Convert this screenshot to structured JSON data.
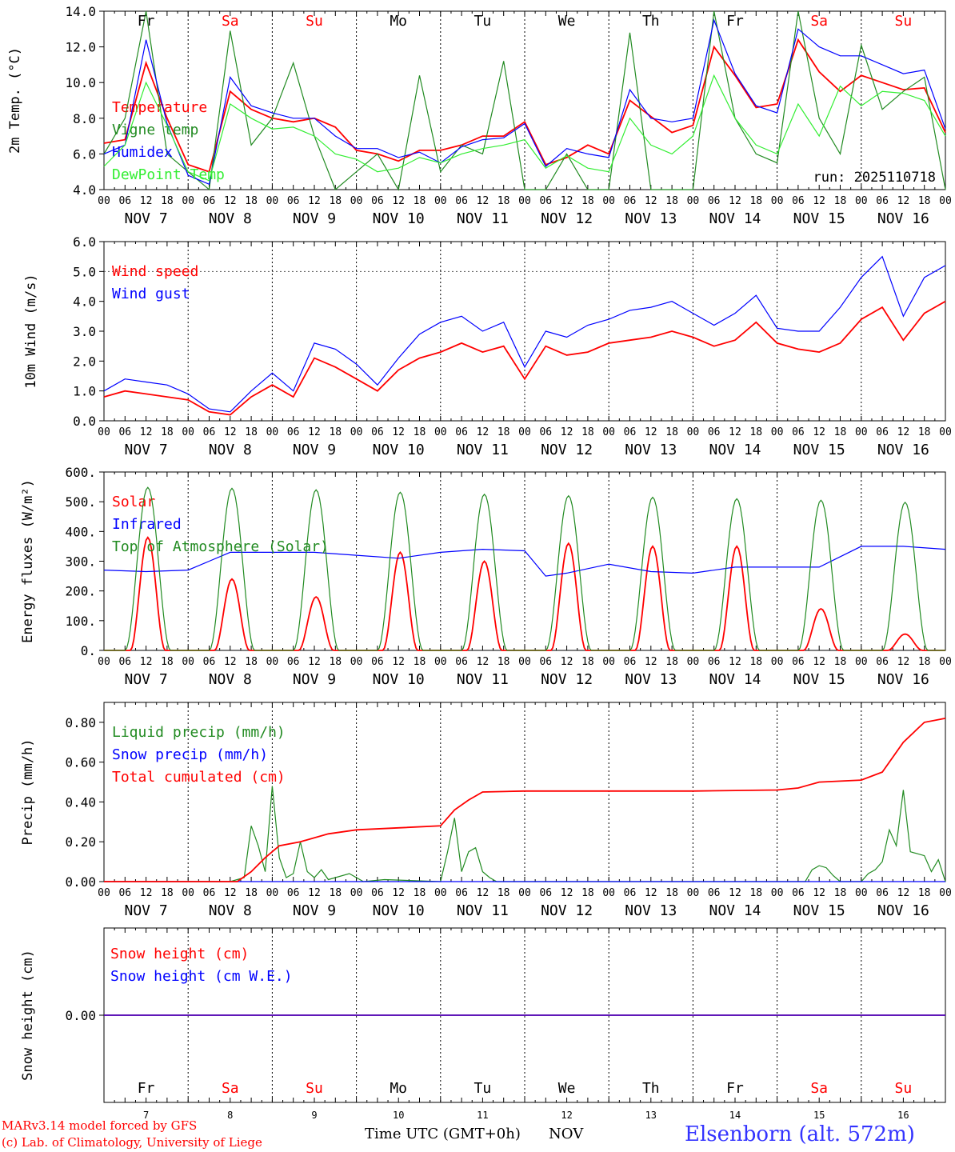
{
  "colors": {
    "red": "#ff0000",
    "green": "#228b22",
    "blue": "#0000ff",
    "lightgreen": "#33ee33",
    "weekday": "#000000",
    "weekend": "#ff0000",
    "station": "#3333ff"
  },
  "hour_ticks": [
    "00",
    "06",
    "12",
    "18"
  ],
  "days": [
    {
      "abbr": "Fr",
      "date": "NOV  7",
      "num": "7",
      "weekend": false
    },
    {
      "abbr": "Sa",
      "date": "NOV  8",
      "num": "8",
      "weekend": true
    },
    {
      "abbr": "Su",
      "date": "NOV  9",
      "num": "9",
      "weekend": true
    },
    {
      "abbr": "Mo",
      "date": "NOV 10",
      "num": "10",
      "weekend": false
    },
    {
      "abbr": "Tu",
      "date": "NOV 11",
      "num": "11",
      "weekend": false
    },
    {
      "abbr": "We",
      "date": "NOV 12",
      "num": "12",
      "weekend": false
    },
    {
      "abbr": "Th",
      "date": "NOV 13",
      "num": "13",
      "weekend": false
    },
    {
      "abbr": "Fr",
      "date": "NOV 14",
      "num": "14",
      "weekend": false
    },
    {
      "abbr": "Sa",
      "date": "NOV 15",
      "num": "15",
      "weekend": true
    },
    {
      "abbr": "Su",
      "date": "NOV 16",
      "num": "16",
      "weekend": true
    }
  ],
  "chart_data": [
    {
      "id": "temp",
      "type": "line",
      "ylabel": "2m Temp. (°C)",
      "ylim": [
        4,
        14
      ],
      "yticks": [
        4,
        6,
        8,
        10,
        12,
        14
      ],
      "ytick_labels": [
        "4.0",
        "6.0",
        "8.0",
        "10.0",
        "12.0",
        "14.0"
      ],
      "xlabel_hours": "0-240 h from NOV 7 00 UTC",
      "x": [
        0,
        6,
        12,
        18,
        24,
        30,
        36,
        42,
        48,
        54,
        60,
        66,
        72,
        78,
        84,
        90,
        96,
        102,
        108,
        114,
        120,
        126,
        132,
        138,
        144,
        150,
        156,
        162,
        168,
        174,
        180,
        186,
        192,
        198,
        204,
        210,
        216,
        222,
        228,
        234,
        240
      ],
      "annotation": "run: 2025110718",
      "series": [
        {
          "name": "Temperature",
          "color": "red",
          "values": [
            6.6,
            6.8,
            11.1,
            8.0,
            5.4,
            5.0,
            9.5,
            8.5,
            8.0,
            7.8,
            8.0,
            7.5,
            6.2,
            6.0,
            5.6,
            6.2,
            6.2,
            6.5,
            7.0,
            7.0,
            7.8,
            5.4,
            5.8,
            6.5,
            6.0,
            9.0,
            8.1,
            7.2,
            7.6,
            12.0,
            10.4,
            8.6,
            8.8,
            12.4,
            10.6,
            9.5,
            10.4,
            10.0,
            9.6,
            9.7,
            7.2
          ]
        },
        {
          "name": "Vigne temp",
          "color": "green",
          "values": [
            6.0,
            8.0,
            14.5,
            6.0,
            5.0,
            4.0,
            12.9,
            6.5,
            8.0,
            11.1,
            7.0,
            4.0,
            5.0,
            6.0,
            4.0,
            10.4,
            5.0,
            6.5,
            6.0,
            11.2,
            4.0,
            4.0,
            6.0,
            4.0,
            4.0,
            12.8,
            4.0,
            4.0,
            4.0,
            14.0,
            8.0,
            6.0,
            5.5,
            14.0,
            8.0,
            6.0,
            12.1,
            8.5,
            9.5,
            10.3,
            4.0
          ]
        },
        {
          "name": "Humidex",
          "color": "blue",
          "values": [
            6.0,
            6.5,
            12.4,
            7.7,
            4.8,
            4.3,
            10.3,
            8.7,
            8.3,
            8.0,
            8.0,
            7.0,
            6.3,
            6.3,
            5.8,
            6.1,
            5.5,
            6.4,
            6.8,
            6.9,
            7.7,
            5.3,
            6.3,
            6.0,
            5.8,
            9.6,
            8.0,
            7.8,
            8.0,
            13.5,
            10.5,
            8.7,
            8.3,
            13.0,
            12.0,
            11.5,
            11.5,
            11.0,
            10.5,
            10.7,
            7.4
          ]
        },
        {
          "name": "DewPoint Temp",
          "color": "lightgreen",
          "values": [
            5.3,
            6.5,
            10.0,
            7.6,
            5.0,
            4.5,
            8.8,
            8.0,
            7.4,
            7.5,
            7.0,
            6.0,
            5.7,
            5.0,
            5.2,
            5.8,
            5.5,
            6.0,
            6.3,
            6.5,
            6.8,
            5.2,
            5.9,
            5.2,
            5.0,
            8.0,
            6.5,
            6.0,
            7.0,
            10.4,
            8.0,
            6.5,
            6.0,
            8.8,
            7.0,
            9.8,
            8.7,
            9.5,
            9.4,
            9.0,
            7.0
          ]
        }
      ]
    },
    {
      "id": "wind",
      "type": "line",
      "ylabel": "10m Wind (m/s)",
      "ylim": [
        0,
        6
      ],
      "yticks": [
        0,
        1,
        2,
        3,
        4,
        5,
        6
      ],
      "ytick_labels": [
        "0.0",
        "1.0",
        "2.0",
        "3.0",
        "4.0",
        "5.0",
        "6.0"
      ],
      "reference_line": 5,
      "x": [
        0,
        6,
        12,
        18,
        24,
        30,
        36,
        42,
        48,
        54,
        60,
        66,
        72,
        78,
        84,
        90,
        96,
        102,
        108,
        114,
        120,
        126,
        132,
        138,
        144,
        150,
        156,
        162,
        168,
        174,
        180,
        186,
        192,
        198,
        204,
        210,
        216,
        222,
        228,
        234,
        240
      ],
      "series": [
        {
          "name": "Wind speed",
          "color": "red",
          "values": [
            0.8,
            1.0,
            0.9,
            0.8,
            0.7,
            0.3,
            0.2,
            0.8,
            1.2,
            0.8,
            2.1,
            1.8,
            1.4,
            1.0,
            1.7,
            2.1,
            2.3,
            2.6,
            2.3,
            2.5,
            1.4,
            2.5,
            2.2,
            2.3,
            2.6,
            2.7,
            2.8,
            3.0,
            2.8,
            2.5,
            2.7,
            3.3,
            2.6,
            2.4,
            2.3,
            2.6,
            3.4,
            3.8,
            2.7,
            3.6,
            4.0
          ]
        },
        {
          "name": "Wind gust",
          "color": "blue",
          "values": [
            1.0,
            1.4,
            1.3,
            1.2,
            0.9,
            0.4,
            0.3,
            1.0,
            1.6,
            1.0,
            2.6,
            2.4,
            1.9,
            1.2,
            2.1,
            2.9,
            3.3,
            3.5,
            3.0,
            3.3,
            1.8,
            3.0,
            2.8,
            3.2,
            3.4,
            3.7,
            3.8,
            4.0,
            3.6,
            3.2,
            3.6,
            4.2,
            3.1,
            3.0,
            3.0,
            3.8,
            4.8,
            5.5,
            3.5,
            4.8,
            5.2
          ]
        }
      ]
    },
    {
      "id": "energy",
      "type": "line",
      "ylabel": "Energy fluxes (W/m²)",
      "ylim": [
        0,
        600
      ],
      "yticks": [
        0,
        100,
        200,
        300,
        400,
        500,
        600
      ],
      "ytick_labels": [
        "0.",
        "100.",
        "200.",
        "300.",
        "400.",
        "500.",
        "600."
      ],
      "series": [
        {
          "name": "Solar",
          "color": "red",
          "peaks": [
            380,
            240,
            180,
            330,
            300,
            360,
            350,
            350,
            140,
            55
          ]
        },
        {
          "name": "Infrared",
          "color": "blue",
          "x": [
            0,
            12,
            24,
            30,
            36,
            48,
            60,
            72,
            84,
            96,
            108,
            120,
            126,
            132,
            144,
            156,
            168,
            180,
            192,
            204,
            216,
            228,
            240
          ],
          "values": [
            270,
            265,
            270,
            300,
            330,
            330,
            330,
            320,
            310,
            330,
            340,
            335,
            250,
            260,
            290,
            265,
            260,
            280,
            280,
            280,
            350,
            350,
            340
          ]
        },
        {
          "name": "Top of Atmosphere (Solar)",
          "color": "green",
          "peaks": [
            548,
            545,
            540,
            532,
            525,
            520,
            515,
            510,
            505,
            498
          ]
        }
      ]
    },
    {
      "id": "precip",
      "type": "line",
      "ylabel": "Precip (mm/h)",
      "ylim": [
        0,
        0.9
      ],
      "yticks": [
        0,
        0.2,
        0.4,
        0.6,
        0.8
      ],
      "ytick_labels": [
        "0.00",
        "0.20",
        "0.40",
        "0.60",
        "0.80"
      ],
      "series": [
        {
          "name": "Liquid precip (mm/h)",
          "color": "green",
          "x": [
            0,
            36,
            40,
            42,
            44,
            46,
            48,
            50,
            52,
            54,
            56,
            58,
            60,
            62,
            64,
            66,
            70,
            74,
            80,
            96,
            98,
            100,
            102,
            104,
            106,
            108,
            110,
            112,
            114,
            120,
            200,
            202,
            204,
            206,
            208,
            210,
            216,
            218,
            220,
            222,
            224,
            226,
            228,
            230,
            234,
            236,
            238,
            240
          ],
          "values": [
            0,
            0,
            0.02,
            0.28,
            0.18,
            0.05,
            0.48,
            0.12,
            0.02,
            0.04,
            0.2,
            0.05,
            0.02,
            0.06,
            0.01,
            0.02,
            0.04,
            0,
            0.01,
            0,
            0.15,
            0.32,
            0.05,
            0.15,
            0.17,
            0.05,
            0.02,
            0,
            0,
            0,
            0,
            0.06,
            0.08,
            0.07,
            0.03,
            0,
            0,
            0.04,
            0.06,
            0.1,
            0.26,
            0.18,
            0.46,
            0.15,
            0.13,
            0.05,
            0.11,
            0
          ]
        },
        {
          "name": "Snow precip (mm/h)",
          "color": "blue",
          "x": [
            0,
            240
          ],
          "values": [
            0,
            0
          ]
        },
        {
          "name": "Total cumulated (cm)",
          "color": "red",
          "x": [
            0,
            38,
            42,
            46,
            50,
            56,
            64,
            72,
            84,
            96,
            100,
            104,
            108,
            120,
            132,
            144,
            168,
            192,
            198,
            204,
            216,
            222,
            228,
            234,
            240
          ],
          "values": [
            0,
            0,
            0.05,
            0.12,
            0.18,
            0.2,
            0.24,
            0.26,
            0.27,
            0.28,
            0.36,
            0.41,
            0.45,
            0.455,
            0.455,
            0.455,
            0.455,
            0.46,
            0.47,
            0.5,
            0.51,
            0.55,
            0.7,
            0.8,
            0.82
          ]
        }
      ]
    },
    {
      "id": "snow",
      "type": "line",
      "ylabel": "Snow height (cm)",
      "ylim": [
        -1,
        1
      ],
      "yticks": [
        0
      ],
      "ytick_labels": [
        "0.00"
      ],
      "series": [
        {
          "name": "Snow height (cm)",
          "color": "red",
          "x": [
            0,
            240
          ],
          "values": [
            0,
            0
          ]
        },
        {
          "name": "Snow height (cm W.E.)",
          "color": "blue",
          "x": [
            0,
            240
          ],
          "values": [
            0,
            0
          ]
        }
      ]
    }
  ],
  "footer": {
    "model": "MARv3.14 model forced by GFS",
    "lab": "(c) Lab. of Climatology, University of Liege",
    "time_label": "Time UTC (GMT+0h)",
    "month": "NOV",
    "station": "Elsenborn (alt. 572m)"
  }
}
